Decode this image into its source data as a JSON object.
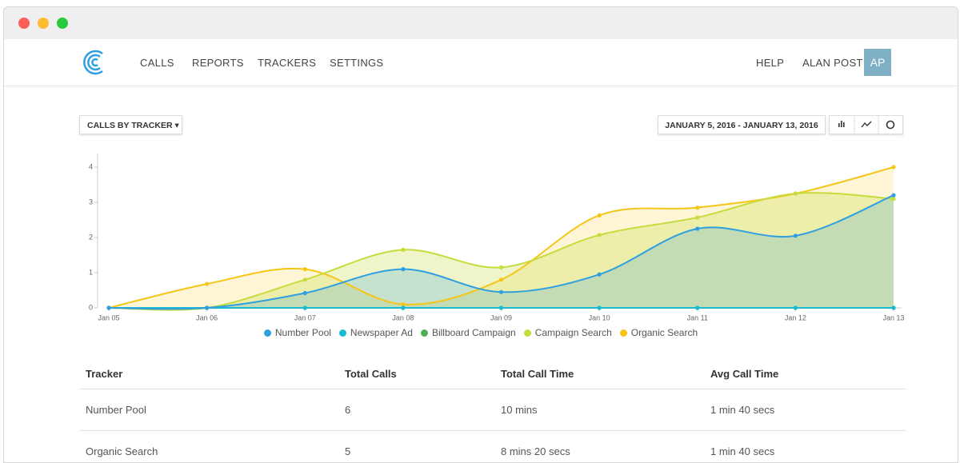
{
  "nav": {
    "items": [
      "CALLS",
      "REPORTS",
      "TRACKERS",
      "SETTINGS"
    ],
    "help": "HELP",
    "user": "ALAN POST",
    "avatar": "AP"
  },
  "controls": {
    "dropdown": "CALLS BY TRACKER",
    "date_range": "JANUARY 5, 2016 - JANUARY 13, 2016"
  },
  "chart_data": {
    "type": "area",
    "categories": [
      "Jan 05",
      "Jan 06",
      "Jan 07",
      "Jan 08",
      "Jan 09",
      "Jan 10",
      "Jan 11",
      "Jan 12",
      "Jan 13"
    ],
    "ylim": [
      0,
      4.4
    ],
    "yticks": [
      0,
      1,
      2,
      3,
      4
    ],
    "series": [
      {
        "name": "Number Pool",
        "color": "#2f9fe0",
        "values": [
          0,
          0,
          0.42,
          1.1,
          0.45,
          0.95,
          2.25,
          2.05,
          3.2
        ]
      },
      {
        "name": "Newspaper Ad",
        "color": "#17bcd4",
        "values": [
          0,
          0,
          0,
          0,
          0,
          0,
          0,
          0,
          0
        ]
      },
      {
        "name": "Billboard Campaign",
        "color": "#4caf50",
        "values": [
          0,
          0,
          0,
          0,
          0,
          0,
          0,
          0,
          0
        ]
      },
      {
        "name": "Campaign Search",
        "color": "#c6dc3c",
        "values": [
          0,
          0,
          0.8,
          1.65,
          1.15,
          2.07,
          2.57,
          3.25,
          3.1
        ]
      },
      {
        "name": "Organic Search",
        "color": "#f5c518",
        "values": [
          0,
          0.68,
          1.1,
          0.1,
          0.8,
          2.63,
          2.85,
          3.25,
          4.0
        ]
      }
    ]
  },
  "table": {
    "headers": [
      "Tracker",
      "Total Calls",
      "Total Call Time",
      "Avg Call Time"
    ],
    "rows": [
      [
        "Number Pool",
        "6",
        "10 mins",
        "1 min 40 secs"
      ],
      [
        "Organic Search",
        "5",
        "8 mins 20 secs",
        "1 min 40 secs"
      ]
    ]
  }
}
